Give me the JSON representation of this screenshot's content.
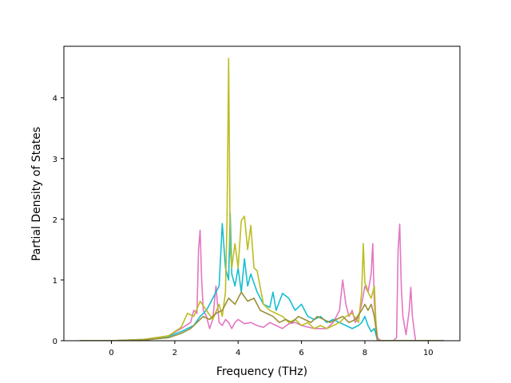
{
  "chart_data": {
    "type": "line",
    "title": "",
    "xlabel": "Frequency (THz)",
    "ylabel": "Partial Density of States",
    "xlim": [
      -1.5,
      11
    ],
    "ylim": [
      0,
      4.85
    ],
    "xticks": [
      0,
      2,
      4,
      6,
      8,
      10
    ],
    "yticks": [
      0,
      1,
      2,
      3,
      4
    ],
    "grid": false,
    "legend": "none",
    "series": [
      {
        "color": "#e377c2",
        "x": [
          -1,
          0,
          1,
          1.8,
          2.2,
          2.5,
          2.6,
          2.7,
          2.75,
          2.8,
          2.85,
          2.9,
          3.0,
          3.1,
          3.2,
          3.3,
          3.4,
          3.5,
          3.6,
          3.7,
          3.8,
          3.9,
          4.0,
          4.2,
          4.4,
          4.6,
          4.8,
          5.0,
          5.2,
          5.4,
          5.6,
          5.8,
          6.0,
          6.4,
          6.8,
          7.0,
          7.2,
          7.3,
          7.4,
          7.5,
          7.6,
          7.7,
          7.8,
          7.9,
          8.0,
          8.1,
          8.2,
          8.25,
          8.3,
          8.35,
          8.4,
          8.5,
          8.9,
          9.0,
          9.05,
          9.1,
          9.15,
          9.2,
          9.3,
          9.4,
          9.45,
          9.5,
          9.6,
          10,
          10.5
        ],
        "y": [
          0,
          0,
          0.02,
          0.08,
          0.2,
          0.3,
          0.5,
          0.45,
          1.5,
          1.82,
          1.0,
          0.5,
          0.4,
          0.2,
          0.35,
          0.9,
          0.3,
          0.25,
          0.35,
          0.3,
          0.2,
          0.3,
          0.35,
          0.28,
          0.3,
          0.25,
          0.22,
          0.3,
          0.25,
          0.2,
          0.28,
          0.3,
          0.25,
          0.2,
          0.2,
          0.3,
          0.5,
          1.0,
          0.6,
          0.4,
          0.5,
          0.3,
          0.4,
          0.6,
          0.9,
          0.8,
          1.1,
          1.6,
          0.6,
          0.3,
          0.05,
          0,
          0,
          0.05,
          1.5,
          1.92,
          0.9,
          0.4,
          0.1,
          0.5,
          0.88,
          0.4,
          0,
          0,
          0
        ]
      },
      {
        "color": "#17becf",
        "x": [
          -1,
          0,
          1,
          1.8,
          2.2,
          2.4,
          2.6,
          2.8,
          3.0,
          3.2,
          3.4,
          3.5,
          3.6,
          3.7,
          3.75,
          3.8,
          3.9,
          4.0,
          4.1,
          4.2,
          4.3,
          4.4,
          4.6,
          4.8,
          5.0,
          5.1,
          5.2,
          5.4,
          5.6,
          5.8,
          6.0,
          6.2,
          6.4,
          6.6,
          6.8,
          7.0,
          7.2,
          7.4,
          7.6,
          7.8,
          7.9,
          8.0,
          8.1,
          8.2,
          8.3,
          8.35,
          8.4,
          9,
          10,
          10.5
        ],
        "y": [
          0,
          0,
          0.02,
          0.07,
          0.15,
          0.2,
          0.25,
          0.4,
          0.5,
          0.7,
          0.9,
          1.93,
          1.2,
          1.0,
          2.1,
          1.1,
          0.9,
          1.2,
          0.8,
          1.35,
          0.9,
          1.1,
          0.8,
          0.6,
          0.55,
          0.8,
          0.5,
          0.78,
          0.7,
          0.5,
          0.6,
          0.4,
          0.35,
          0.4,
          0.3,
          0.35,
          0.3,
          0.25,
          0.2,
          0.25,
          0.3,
          0.4,
          0.25,
          0.15,
          0.2,
          0.1,
          0,
          0,
          0,
          0
        ]
      },
      {
        "color": "#bcbd22",
        "x": [
          -1,
          0,
          1,
          1.8,
          2.2,
          2.4,
          2.6,
          2.8,
          3.0,
          3.2,
          3.4,
          3.5,
          3.6,
          3.65,
          3.7,
          3.75,
          3.8,
          3.9,
          4.0,
          4.1,
          4.2,
          4.3,
          4.4,
          4.5,
          4.6,
          4.8,
          5.0,
          5.2,
          5.4,
          5.6,
          5.8,
          6.0,
          6.2,
          6.4,
          6.6,
          6.8,
          7.0,
          7.2,
          7.4,
          7.6,
          7.8,
          7.9,
          7.95,
          8.0,
          8.05,
          8.1,
          8.2,
          8.3,
          8.35,
          8.4,
          9,
          10,
          10.5
        ],
        "y": [
          0,
          0,
          0.02,
          0.08,
          0.22,
          0.45,
          0.4,
          0.65,
          0.5,
          0.35,
          0.6,
          0.4,
          0.8,
          2.0,
          4.65,
          1.5,
          1.2,
          1.6,
          1.2,
          1.98,
          2.05,
          1.5,
          1.9,
          1.2,
          1.15,
          0.6,
          0.5,
          0.45,
          0.4,
          0.3,
          0.35,
          0.25,
          0.3,
          0.2,
          0.25,
          0.2,
          0.25,
          0.3,
          0.4,
          0.45,
          0.3,
          0.8,
          1.6,
          0.95,
          0.9,
          0.8,
          0.7,
          0.9,
          0.3,
          0,
          0,
          0,
          0
        ]
      },
      {
        "color": "#9a8f3a",
        "x": [
          -1,
          0,
          1,
          1.8,
          2.2,
          2.5,
          2.7,
          2.9,
          3.1,
          3.3,
          3.5,
          3.7,
          3.9,
          4.1,
          4.3,
          4.5,
          4.7,
          4.9,
          5.1,
          5.3,
          5.5,
          5.7,
          5.9,
          6.1,
          6.3,
          6.5,
          6.7,
          6.9,
          7.1,
          7.3,
          7.5,
          7.7,
          7.9,
          8.0,
          8.1,
          8.2,
          8.3,
          8.35,
          8.4,
          9,
          10.5
        ],
        "y": [
          0,
          0,
          0.01,
          0.05,
          0.12,
          0.2,
          0.3,
          0.4,
          0.35,
          0.45,
          0.5,
          0.7,
          0.6,
          0.8,
          0.65,
          0.7,
          0.5,
          0.45,
          0.4,
          0.3,
          0.35,
          0.3,
          0.4,
          0.35,
          0.3,
          0.4,
          0.35,
          0.3,
          0.35,
          0.4,
          0.3,
          0.35,
          0.5,
          0.6,
          0.5,
          0.6,
          0.4,
          0.2,
          0,
          0,
          0
        ]
      }
    ]
  }
}
